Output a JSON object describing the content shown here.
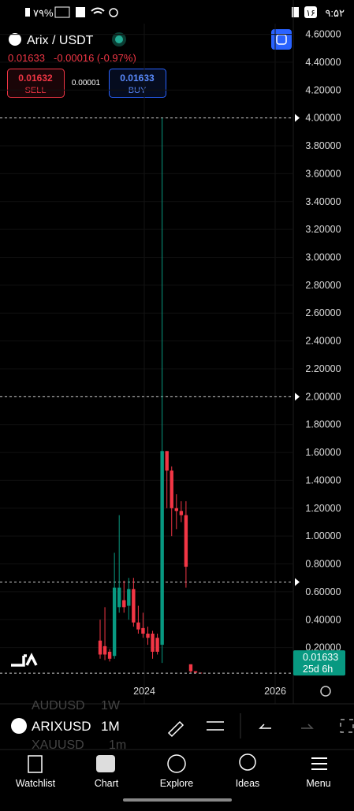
{
  "status_bar": {
    "time": "۹:۵۲",
    "battery": "۷۹%",
    "badge": "۱۶"
  },
  "header": {
    "symbol": "Arix / USDT",
    "price": "0.01633",
    "change": "-0.00016 (-0.97%)",
    "sell_price": "0.01632",
    "sell_label": "SELL",
    "spread": "0.00001",
    "buy_price": "0.01633",
    "buy_label": "BUY"
  },
  "chart_data": {
    "type": "candlestick",
    "candles": {
      "open": [
        0.25,
        0.21,
        0.17,
        0.14,
        0.49,
        0.54,
        0.5,
        0.62,
        0.38,
        0.34,
        0.3,
        0.3,
        0.27,
        0.22,
        1.61,
        1.47,
        1.2,
        1.18,
        1.15,
        0.08,
        0.03,
        0.02
      ],
      "high": [
        0.4,
        0.49,
        0.19,
        0.88,
        1.15,
        0.68,
        0.7,
        0.7,
        0.5,
        0.45,
        0.35,
        0.32,
        0.3,
        4.0,
        1.61,
        1.5,
        1.3,
        1.25,
        1.25,
        0.08,
        0.03,
        0.02
      ],
      "low": [
        0.12,
        0.11,
        0.1,
        0.12,
        0.45,
        0.45,
        0.4,
        0.35,
        0.3,
        0.27,
        0.22,
        0.12,
        0.15,
        0.09,
        1.2,
        1.0,
        1.05,
        1.1,
        0.63,
        0.02,
        0.02,
        0.016
      ],
      "close": [
        0.15,
        0.15,
        0.12,
        0.63,
        0.63,
        0.49,
        0.62,
        0.38,
        0.33,
        0.3,
        0.27,
        0.17,
        0.17,
        1.61,
        1.47,
        1.2,
        1.18,
        1.15,
        0.78,
        0.03,
        0.02,
        0.016
      ]
    },
    "up_color": "#089981",
    "down_color": "#f23645",
    "ylim": [
      0,
      4.8
    ],
    "yticks": [
      {
        "value": 0.2,
        "label": "0.20000"
      },
      {
        "value": 0.4,
        "label": "0.40000"
      },
      {
        "value": 0.6,
        "label": "0.60000"
      },
      {
        "value": 0.8,
        "label": "0.80000"
      },
      {
        "value": 1.0,
        "label": "1.00000"
      },
      {
        "value": 1.2,
        "label": "1.20000"
      },
      {
        "value": 1.4,
        "label": "1.40000"
      },
      {
        "value": 1.6,
        "label": "1.60000"
      },
      {
        "value": 1.8,
        "label": "1.80000"
      },
      {
        "value": 2.0,
        "label": "2.00000"
      },
      {
        "value": 2.2,
        "label": "2.20000"
      },
      {
        "value": 2.4,
        "label": "2.40000"
      },
      {
        "value": 2.6,
        "label": "2.60000"
      },
      {
        "value": 2.8,
        "label": "2.80000"
      },
      {
        "value": 3.0,
        "label": "3.00000"
      },
      {
        "value": 3.2,
        "label": "3.20000"
      },
      {
        "value": 3.4,
        "label": "3.40000"
      },
      {
        "value": 3.6,
        "label": "3.60000"
      },
      {
        "value": 3.8,
        "label": "3.80000"
      },
      {
        "value": 4.0,
        "label": "4.00000"
      },
      {
        "value": 4.2,
        "label": "4.20000"
      },
      {
        "value": 4.4,
        "label": "4.40000"
      },
      {
        "value": 4.6,
        "label": "4.60000"
      }
    ],
    "horizontal_lines": [
      4.0,
      2.0,
      0.67
    ],
    "last_price": 0.01633,
    "countdown": "25d 6h",
    "x_labels": [
      "2024",
      "2026"
    ]
  },
  "toolbar": {
    "prev_symbol": "AUDUSD",
    "prev_interval": "1W",
    "symbol": "ARIXUSD",
    "interval": "1M",
    "next_symbol": "XAUUSD",
    "next_interval": "1m"
  },
  "nav": [
    "Watchlist",
    "Chart",
    "Explore",
    "Ideas",
    "Menu"
  ]
}
